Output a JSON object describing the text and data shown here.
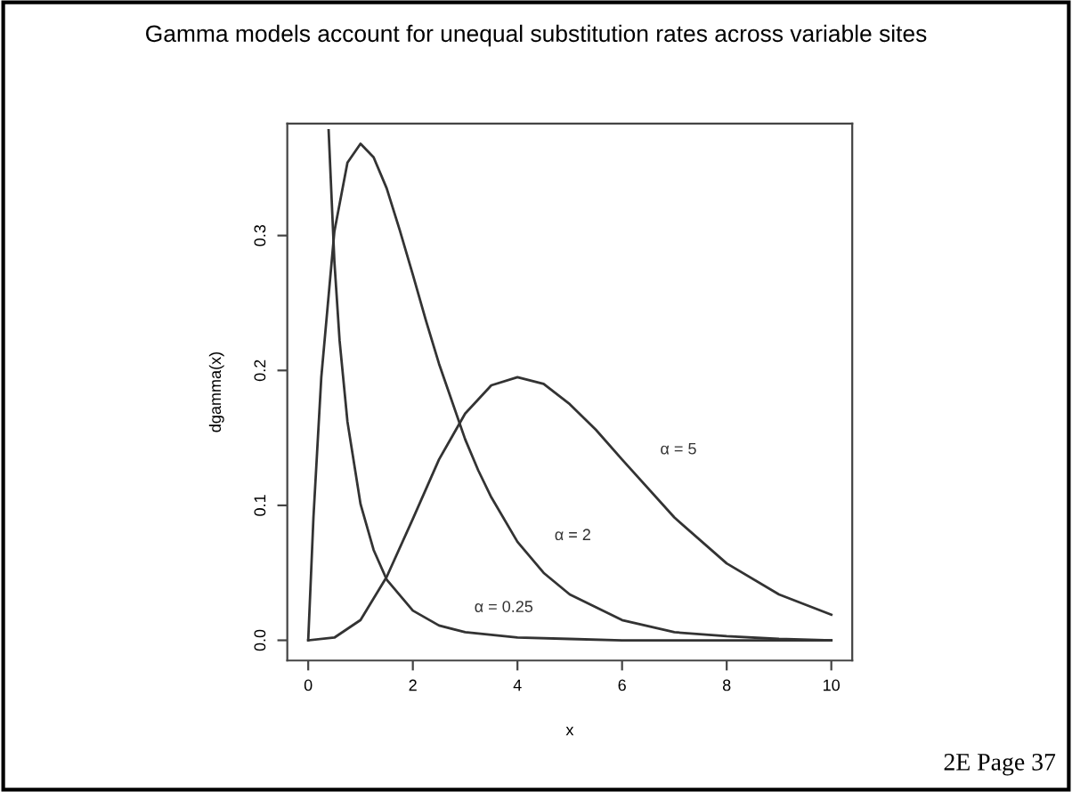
{
  "chart_data": {
    "type": "line",
    "title": "Gamma models account for unequal substitution rates across variable sites",
    "xlabel": "x",
    "ylabel": "dgamma(x)",
    "xlim": [
      -0.4,
      10.4
    ],
    "ylim": [
      -0.015,
      0.383
    ],
    "xticks": [
      0,
      2,
      4,
      6,
      8,
      10
    ],
    "yticks": [
      {
        "value": 0,
        "label": "0.0"
      },
      0.1,
      0.2,
      0.3
    ],
    "grid": false,
    "legend": false,
    "marker": "none",
    "line_style": "solid",
    "series": [
      {
        "name": "α = 0.25",
        "color": "#333333",
        "x": [
          0.39,
          0.5,
          0.6,
          0.75,
          1,
          1.25,
          1.5,
          2,
          2.5,
          3,
          4,
          5,
          6,
          8,
          10
        ],
        "values": [
          0.378,
          0.281,
          0.222,
          0.162,
          0.101,
          0.067,
          0.045,
          0.022,
          0.011,
          0.006,
          0.002,
          0.001,
          0.0,
          0.0,
          0.0
        ]
      },
      {
        "name": "α = 2",
        "color": "#333333",
        "x": [
          0,
          0.1,
          0.25,
          0.5,
          0.75,
          1,
          1.25,
          1.5,
          1.75,
          2,
          2.25,
          2.5,
          3,
          3.25,
          3.5,
          4,
          4.5,
          5,
          6,
          7,
          8,
          9,
          10
        ],
        "values": [
          0,
          0.091,
          0.195,
          0.303,
          0.354,
          0.368,
          0.358,
          0.335,
          0.304,
          0.271,
          0.237,
          0.205,
          0.149,
          0.126,
          0.106,
          0.073,
          0.05,
          0.034,
          0.015,
          0.006,
          0.003,
          0.001,
          0.0
        ]
      },
      {
        "name": "α = 5",
        "color": "#333333",
        "x": [
          0,
          0.5,
          1,
          1.5,
          2,
          2.5,
          3,
          3.5,
          4,
          4.5,
          5,
          5.5,
          6,
          7,
          8,
          9,
          10
        ],
        "values": [
          0,
          0.002,
          0.015,
          0.047,
          0.09,
          0.134,
          0.168,
          0.189,
          0.195,
          0.19,
          0.175,
          0.156,
          0.134,
          0.091,
          0.057,
          0.034,
          0.019
        ]
      }
    ],
    "annotations": [
      "2E Page 37"
    ]
  }
}
